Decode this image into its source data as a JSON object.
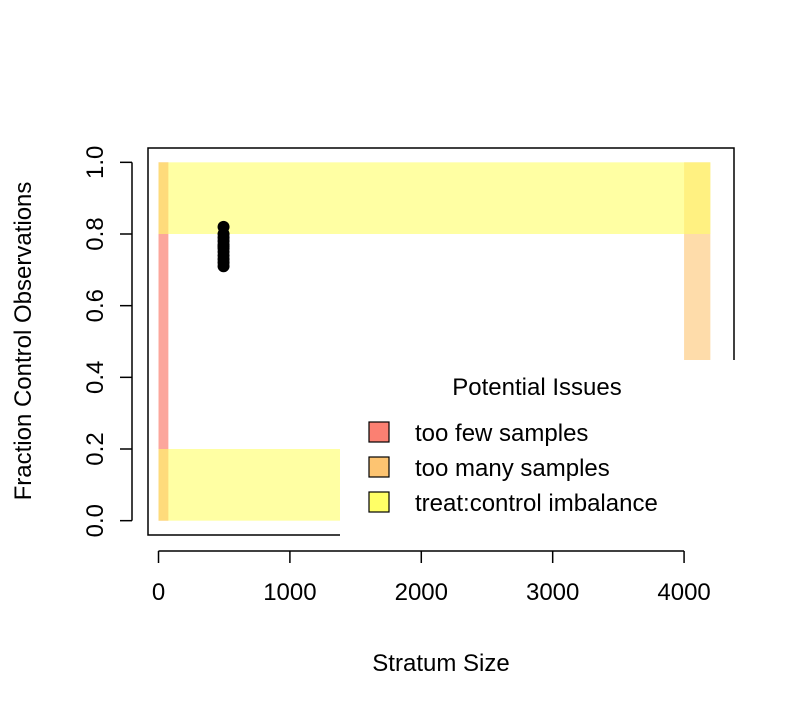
{
  "chart_data": {
    "type": "scatter",
    "xlabel": "Stratum Size",
    "ylabel": "Fraction Control Observations",
    "xlim": [
      -80,
      4380
    ],
    "ylim": [
      -0.04,
      1.04
    ],
    "x_ticks": [
      0,
      1000,
      2000,
      3000,
      4000
    ],
    "x_tick_labels": [
      "0",
      "1000",
      "2000",
      "3000",
      "4000"
    ],
    "y_ticks": [
      0.0,
      0.2,
      0.4,
      0.6,
      0.8,
      1.0
    ],
    "y_tick_labels": [
      "0.0",
      "0.2",
      "0.4",
      "0.6",
      "0.8",
      "1.0"
    ],
    "grid": false,
    "regions": [
      {
        "issue": "too few samples",
        "x": [
          0,
          75
        ],
        "y": [
          0,
          1
        ],
        "color": "#FB8072",
        "opacity": 0.7
      },
      {
        "issue": "too many samples",
        "x": [
          4000,
          4200
        ],
        "y": [
          0,
          1
        ],
        "color": "#FDC471",
        "opacity": 0.6
      },
      {
        "issue": "treat:control imbalance",
        "x": [
          0,
          4200
        ],
        "y": [
          0.8,
          1.0
        ],
        "color": "#FFFF66",
        "opacity": 0.6
      },
      {
        "issue": "treat:control imbalance",
        "x": [
          0,
          4200
        ],
        "y": [
          0.0,
          0.2
        ],
        "color": "#FFFF66",
        "opacity": 0.6
      }
    ],
    "points": {
      "x": [
        495,
        495,
        495,
        495,
        495,
        495,
        495,
        495,
        495,
        495,
        495,
        495
      ],
      "y": [
        0.71,
        0.72,
        0.73,
        0.74,
        0.75,
        0.76,
        0.765,
        0.77,
        0.78,
        0.79,
        0.8,
        0.82
      ],
      "color": "#000000"
    },
    "legend": {
      "title": "Potential Issues",
      "placement": "bottom-right",
      "entries": [
        {
          "label": "too few samples",
          "color": "#FB8072"
        },
        {
          "label": "too many samples",
          "color": "#FDC471"
        },
        {
          "label": "treat:control imbalance",
          "color": "#FFFF66"
        }
      ]
    }
  }
}
